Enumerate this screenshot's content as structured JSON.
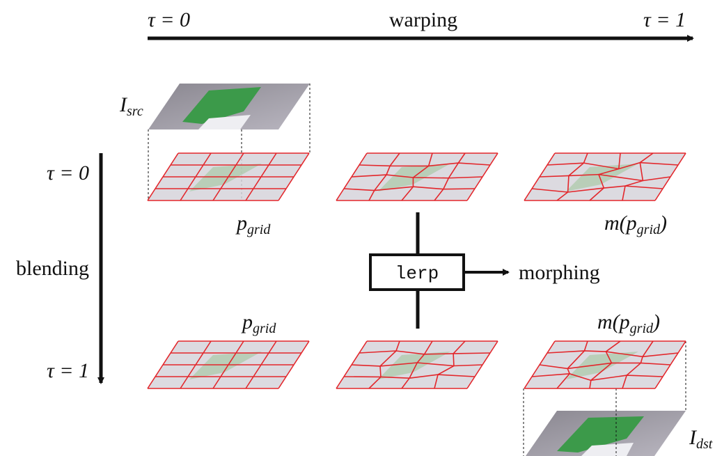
{
  "header": {
    "tau_start": "τ = 0",
    "title": "warping",
    "tau_end": "τ = 1"
  },
  "side": {
    "tau_start": "τ = 0",
    "label": "blending",
    "tau_end": "τ = 1"
  },
  "labels": {
    "source": {
      "base": "I",
      "sub": "src"
    },
    "grid_top": {
      "base": "p",
      "sub": "grid"
    },
    "mapped_top": {
      "base": "m(p",
      "sub": "grid",
      "tail": ")"
    },
    "grid_bottom": {
      "base": "p",
      "sub": "grid"
    },
    "mapped_bottom": {
      "base": "m(p",
      "sub": "grid",
      "tail": ")"
    },
    "destination": {
      "base": "I",
      "sub": "dst"
    }
  },
  "operator": {
    "label": "lerp",
    "output": "morphing"
  }
}
